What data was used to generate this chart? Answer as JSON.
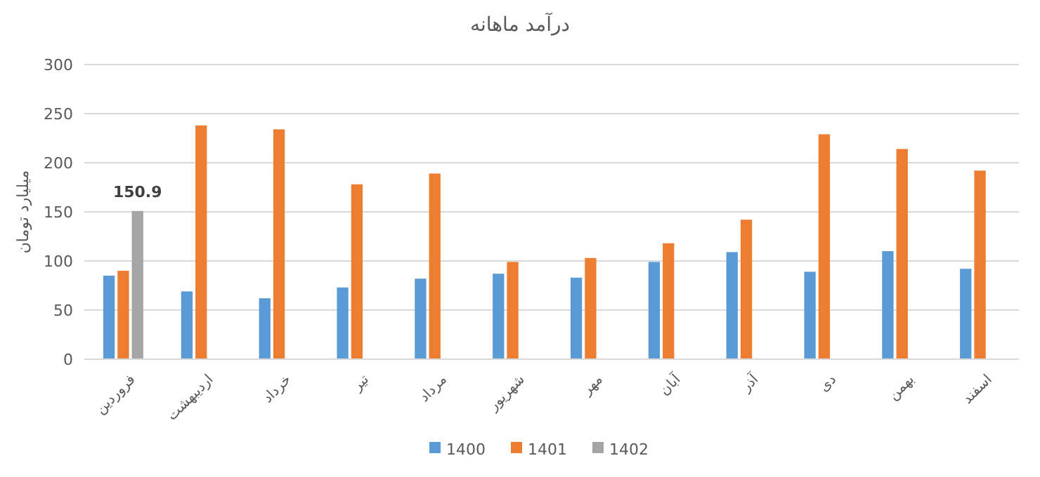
{
  "chart_data": {
    "type": "bar",
    "title": "درآمد ماهانه",
    "ylabel": "میلیارد تومان",
    "categories": [
      "فروردین",
      "اردیبهشت",
      "خرداد",
      "تیر",
      "مرداد",
      "شهریور",
      "مهر",
      "آبان",
      "آذر",
      "دی",
      "بهمن",
      "اسفند"
    ],
    "series": [
      {
        "name": "1400",
        "color": "#5b9bd5",
        "values": [
          85,
          69,
          62,
          73,
          82,
          87,
          83,
          99,
          109,
          89,
          110,
          92
        ]
      },
      {
        "name": "1401",
        "color": "#ed7d31",
        "values": [
          90,
          238,
          234,
          178,
          189,
          99,
          103,
          118,
          142,
          229,
          214,
          192
        ]
      },
      {
        "name": "1402",
        "color": "#a5a5a5",
        "values": [
          150.9,
          null,
          null,
          null,
          null,
          null,
          null,
          null,
          null,
          null,
          null,
          null
        ],
        "value_labels": [
          "150.9",
          null,
          null,
          null,
          null,
          null,
          null,
          null,
          null,
          null,
          null,
          null
        ]
      }
    ],
    "ylim": [
      0,
      300
    ],
    "yticks": [
      0,
      50,
      100,
      150,
      200,
      250,
      300
    ],
    "grid": "y",
    "legend": "bottom"
  }
}
